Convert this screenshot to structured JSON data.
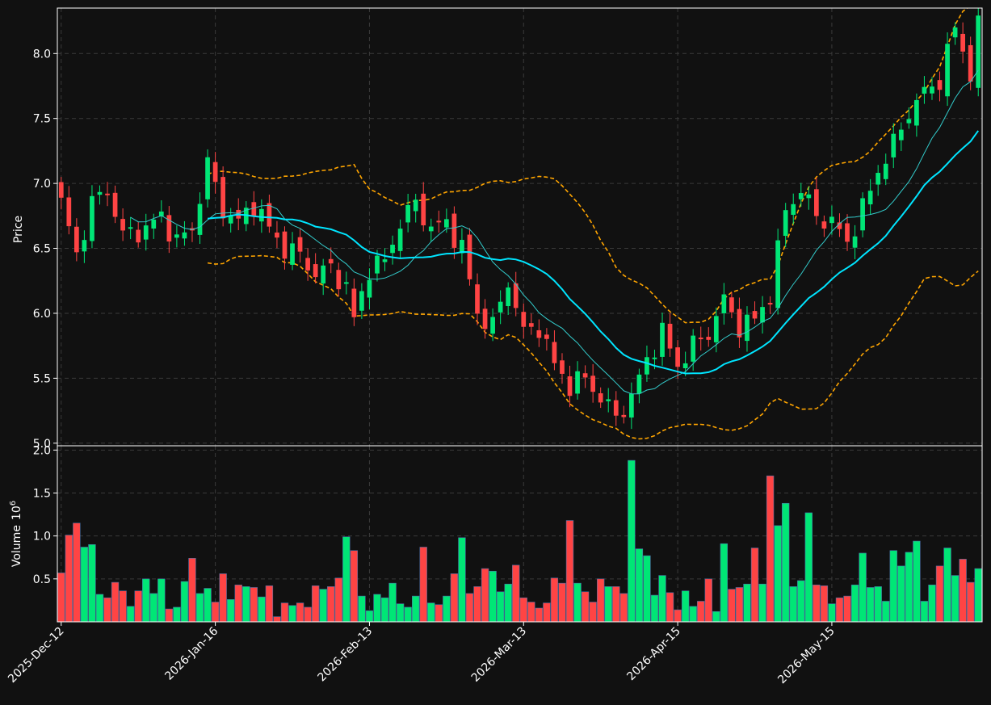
{
  "chart_data": {
    "type": "candlestick",
    "price_panel": {
      "ylabel": "Price",
      "ylim": [
        4.98,
        8.35
      ],
      "yticks": [
        "5.0",
        "5.5",
        "6.0",
        "6.5",
        "7.0",
        "7.5",
        "8.0"
      ],
      "ytick_values": [
        5.0,
        5.5,
        6.0,
        6.5,
        7.0,
        7.5,
        8.0
      ]
    },
    "volume_panel": {
      "ylabel": "Volume",
      "scale_label": "10",
      "scale_exponent": "6",
      "ylim": [
        0,
        2.05
      ],
      "yticks": [
        "0.5",
        "1.0",
        "1.5",
        "2.0"
      ],
      "ytick_values": [
        0.5,
        1.0,
        1.5,
        2.0
      ]
    },
    "xticks": [
      {
        "index": 0,
        "label": "2025-Dec-12"
      },
      {
        "index": 20,
        "label": "2026-Jan-16"
      },
      {
        "index": 40,
        "label": "2026-Feb-13"
      },
      {
        "index": 60,
        "label": "2026-Mar-13"
      },
      {
        "index": 80,
        "label": "2026-Apr-15"
      },
      {
        "index": 100,
        "label": "2026-May-15"
      }
    ],
    "grid": true,
    "colors": {
      "up": "#00e676",
      "down": "#ff4444",
      "ma_fast": "#33cccc",
      "ma_slow": "#00e5ff",
      "band": "#ffa500",
      "background": "#111111",
      "frame": "#ffffff"
    },
    "ohlc_anchors": [
      [
        0,
        6.85
      ],
      [
        2,
        6.45
      ],
      [
        4,
        6.85
      ],
      [
        6,
        6.95
      ],
      [
        8,
        6.6
      ],
      [
        11,
        6.65
      ],
      [
        13,
        6.75
      ],
      [
        15,
        6.55
      ],
      [
        17,
        6.65
      ],
      [
        19,
        7.15
      ],
      [
        21,
        6.8
      ],
      [
        23,
        6.7
      ],
      [
        25,
        6.85
      ],
      [
        27,
        6.65
      ],
      [
        29,
        6.5
      ],
      [
        31,
        6.45
      ],
      [
        33,
        6.3
      ],
      [
        35,
        6.35
      ],
      [
        37,
        6.2
      ],
      [
        38,
        5.95
      ],
      [
        40,
        6.35
      ],
      [
        42,
        6.4
      ],
      [
        44,
        6.7
      ],
      [
        46,
        6.85
      ],
      [
        48,
        6.65
      ],
      [
        50,
        6.7
      ],
      [
        52,
        6.5
      ],
      [
        54,
        6.0
      ],
      [
        56,
        5.9
      ],
      [
        58,
        6.25
      ],
      [
        60,
        5.85
      ],
      [
        62,
        5.9
      ],
      [
        64,
        5.6
      ],
      [
        66,
        5.45
      ],
      [
        68,
        5.5
      ],
      [
        70,
        5.35
      ],
      [
        72,
        5.2
      ],
      [
        74,
        5.35
      ],
      [
        76,
        5.65
      ],
      [
        78,
        5.85
      ],
      [
        80,
        5.6
      ],
      [
        82,
        5.75
      ],
      [
        84,
        5.85
      ],
      [
        86,
        6.1
      ],
      [
        88,
        5.9
      ],
      [
        90,
        5.95
      ],
      [
        92,
        6.15
      ],
      [
        94,
        6.8
      ],
      [
        96,
        6.95
      ],
      [
        98,
        6.75
      ],
      [
        100,
        6.7
      ],
      [
        102,
        6.55
      ],
      [
        104,
        6.8
      ],
      [
        106,
        7.1
      ],
      [
        108,
        7.3
      ],
      [
        110,
        7.55
      ],
      [
        112,
        7.7
      ],
      [
        114,
        7.8
      ],
      [
        116,
        8.2
      ],
      [
        118,
        7.85
      ],
      [
        119,
        8.2
      ]
    ],
    "volume_values": [
      0.57,
      1.01,
      1.15,
      0.87,
      0.9,
      0.32,
      0.28,
      0.46,
      0.36,
      0.18,
      0.36,
      0.5,
      0.33,
      0.5,
      0.15,
      0.17,
      0.47,
      0.74,
      0.33,
      0.39,
      0.23,
      0.56,
      0.26,
      0.43,
      0.41,
      0.4,
      0.29,
      0.42,
      0.06,
      0.22,
      0.19,
      0.22,
      0.17,
      0.42,
      0.38,
      0.41,
      0.51,
      0.99,
      0.83,
      0.3,
      0.13,
      0.32,
      0.28,
      0.45,
      0.21,
      0.17,
      0.3,
      0.87,
      0.22,
      0.2,
      0.3,
      0.56,
      0.98,
      0.33,
      0.41,
      0.62,
      0.59,
      0.35,
      0.44,
      0.66,
      0.28,
      0.23,
      0.16,
      0.22,
      0.51,
      0.45,
      1.18,
      0.45,
      0.35,
      0.23,
      0.5,
      0.41,
      0.41,
      0.33,
      1.88,
      0.85,
      0.77,
      0.31,
      0.54,
      0.34,
      0.14,
      0.36,
      0.18,
      0.24,
      0.5,
      0.12,
      0.91,
      0.38,
      0.4,
      0.44,
      0.86,
      0.44,
      1.7,
      1.12,
      1.38,
      0.41,
      0.48,
      1.27,
      0.43,
      0.42,
      0.21,
      0.28,
      0.3,
      0.43,
      0.8,
      0.4,
      0.41,
      0.24,
      0.83,
      0.65,
      0.81,
      0.94,
      0.24,
      0.43,
      0.65,
      0.86,
      0.54,
      0.73,
      0.46,
      0.62
    ]
  }
}
